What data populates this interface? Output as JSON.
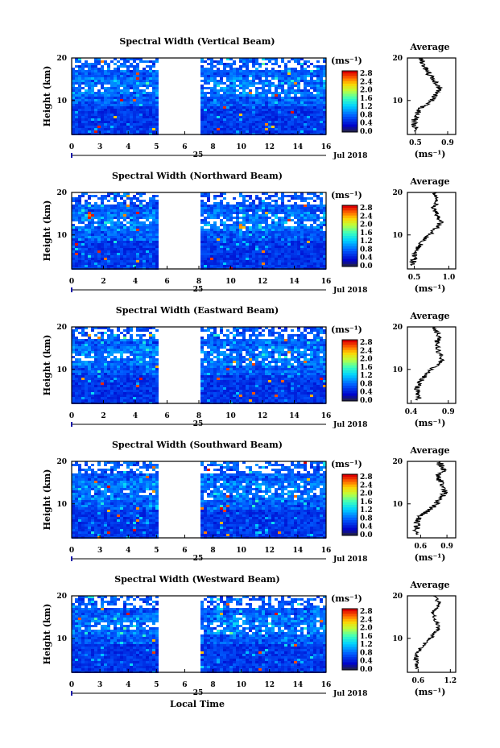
{
  "chart_data": [
    {
      "type": "heatmap",
      "title": "Spectral Width (Vertical Beam)",
      "ylabel": "Height (km)",
      "x_ticks": [
        "0",
        "3",
        "4",
        "5",
        "6",
        "8",
        "10",
        "12",
        "14",
        "16"
      ],
      "y_ticks": [
        "20",
        "10"
      ],
      "ylim": [
        2,
        20
      ],
      "xlim": [
        0,
        16
      ],
      "no_data_hours": [
        5.3,
        8.0
      ],
      "colorbar_unit": "(ms⁻¹)",
      "colorbar_ticks": [
        "2.8",
        "2.4",
        "2.0",
        "1.6",
        "1.2",
        "0.8",
        "0.4",
        "0.0"
      ],
      "date_marker": "25",
      "date_label": "Jul 2018",
      "avg_title": "Average",
      "avg_xlabel": "(ms⁻¹)",
      "avg_ticks": [
        "0.5",
        "0.9"
      ],
      "avg_xlim": [
        0.4,
        1.0
      ],
      "avg_y_ticks": [
        "20",
        "10"
      ],
      "seed": 11,
      "avg_profile": [
        {
          "h": 3,
          "v": 0.5
        },
        {
          "h": 5,
          "v": 0.48
        },
        {
          "h": 7,
          "v": 0.52
        },
        {
          "h": 8,
          "v": 0.55
        },
        {
          "h": 9,
          "v": 0.62
        },
        {
          "h": 10,
          "v": 0.7
        },
        {
          "h": 11,
          "v": 0.74
        },
        {
          "h": 12,
          "v": 0.78
        },
        {
          "h": 13,
          "v": 0.8
        },
        {
          "h": 14,
          "v": 0.76
        },
        {
          "h": 15,
          "v": 0.72
        },
        {
          "h": 16,
          "v": 0.68
        },
        {
          "h": 17,
          "v": 0.64
        },
        {
          "h": 18,
          "v": 0.6
        },
        {
          "h": 19,
          "v": 0.58
        },
        {
          "h": 20,
          "v": 0.56
        }
      ]
    },
    {
      "type": "heatmap",
      "title": "Spectral Width (Northward Beam)",
      "ylabel": "Height (km)",
      "x_ticks": [
        "0",
        "2",
        "4",
        "6",
        "8",
        "10",
        "12",
        "14",
        "16"
      ],
      "y_ticks": [
        "20",
        "10"
      ],
      "ylim": [
        2,
        20
      ],
      "xlim": [
        0,
        16
      ],
      "no_data_hours": [
        5.3,
        8.0
      ],
      "colorbar_unit": "(ms⁻¹)",
      "colorbar_ticks": [
        "2.8",
        "2.4",
        "2.0",
        "1.6",
        "1.2",
        "0.8",
        "0.4",
        "0.0"
      ],
      "date_marker": "25",
      "date_label": "Jul 2018",
      "avg_title": "Average",
      "avg_xlabel": "(ms⁻¹)",
      "avg_ticks": [
        "0.5",
        "1.0"
      ],
      "avg_xlim": [
        0.4,
        1.1
      ],
      "avg_y_ticks": [
        "20",
        "10"
      ],
      "seed": 23,
      "avg_profile": [
        {
          "h": 3,
          "v": 0.48
        },
        {
          "h": 5,
          "v": 0.5
        },
        {
          "h": 7,
          "v": 0.55
        },
        {
          "h": 8,
          "v": 0.6
        },
        {
          "h": 9,
          "v": 0.66
        },
        {
          "h": 10,
          "v": 0.72
        },
        {
          "h": 11,
          "v": 0.78
        },
        {
          "h": 12,
          "v": 0.84
        },
        {
          "h": 13,
          "v": 0.88
        },
        {
          "h": 14,
          "v": 0.86
        },
        {
          "h": 15,
          "v": 0.82
        },
        {
          "h": 16,
          "v": 0.78
        },
        {
          "h": 17,
          "v": 0.8
        },
        {
          "h": 18,
          "v": 0.84
        },
        {
          "h": 19,
          "v": 0.82
        },
        {
          "h": 20,
          "v": 0.78
        }
      ]
    },
    {
      "type": "heatmap",
      "title": "Spectral Width (Eastward Beam)",
      "ylabel": "Height (km)",
      "x_ticks": [
        "0",
        "2",
        "4",
        "6",
        "8",
        "10",
        "12",
        "14",
        "16"
      ],
      "y_ticks": [
        "20",
        "10"
      ],
      "ylim": [
        2,
        20
      ],
      "xlim": [
        0,
        16
      ],
      "no_data_hours": [
        5.3,
        8.0
      ],
      "colorbar_unit": "(ms⁻¹)",
      "colorbar_ticks": [
        "2.8",
        "2.4",
        "2.0",
        "1.6",
        "1.2",
        "0.8",
        "0.4",
        "0.0"
      ],
      "date_marker": "25",
      "date_label": "Jul 2018",
      "avg_title": "Average",
      "avg_xlabel": "(ms⁻¹)",
      "avg_ticks": [
        "0.4",
        "0.9"
      ],
      "avg_xlim": [
        0.35,
        1.0
      ],
      "avg_y_ticks": [
        "20",
        "10"
      ],
      "seed": 37,
      "avg_profile": [
        {
          "h": 3,
          "v": 0.5
        },
        {
          "h": 5,
          "v": 0.48
        },
        {
          "h": 7,
          "v": 0.52
        },
        {
          "h": 8,
          "v": 0.56
        },
        {
          "h": 9,
          "v": 0.62
        },
        {
          "h": 10,
          "v": 0.68
        },
        {
          "h": 11,
          "v": 0.74
        },
        {
          "h": 12,
          "v": 0.8
        },
        {
          "h": 13,
          "v": 0.82
        },
        {
          "h": 14,
          "v": 0.78
        },
        {
          "h": 15,
          "v": 0.76
        },
        {
          "h": 16,
          "v": 0.74
        },
        {
          "h": 17,
          "v": 0.76
        },
        {
          "h": 18,
          "v": 0.78
        },
        {
          "h": 19,
          "v": 0.74
        },
        {
          "h": 20,
          "v": 0.7
        }
      ]
    },
    {
      "type": "heatmap",
      "title": "Spectral Width (Southward Beam)",
      "ylabel": "Height (km)",
      "x_ticks": [
        "0",
        "3",
        "4",
        "5",
        "6",
        "8",
        "10",
        "12",
        "14",
        "16"
      ],
      "y_ticks": [
        "20",
        "10"
      ],
      "ylim": [
        2,
        20
      ],
      "xlim": [
        0,
        16
      ],
      "no_data_hours": [
        5.3,
        8.0
      ],
      "colorbar_unit": "(ms⁻¹)",
      "colorbar_ticks": [
        "2.8",
        "2.4",
        "2.0",
        "1.6",
        "1.2",
        "0.8",
        "0.4",
        "0.0"
      ],
      "date_marker": "25",
      "date_label": "Jul 2018",
      "avg_title": "Average",
      "avg_xlabel": "(ms⁻¹)",
      "avg_ticks": [
        "0.6",
        "0.9"
      ],
      "avg_xlim": [
        0.45,
        1.0
      ],
      "avg_y_ticks": [
        "20",
        "10"
      ],
      "seed": 41,
      "avg_profile": [
        {
          "h": 3,
          "v": 0.56
        },
        {
          "h": 5,
          "v": 0.55
        },
        {
          "h": 7,
          "v": 0.6
        },
        {
          "h": 8,
          "v": 0.66
        },
        {
          "h": 9,
          "v": 0.72
        },
        {
          "h": 10,
          "v": 0.78
        },
        {
          "h": 11,
          "v": 0.82
        },
        {
          "h": 12,
          "v": 0.86
        },
        {
          "h": 13,
          "v": 0.88
        },
        {
          "h": 14,
          "v": 0.86
        },
        {
          "h": 15,
          "v": 0.84
        },
        {
          "h": 16,
          "v": 0.8
        },
        {
          "h": 17,
          "v": 0.82
        },
        {
          "h": 18,
          "v": 0.86
        },
        {
          "h": 19,
          "v": 0.84
        },
        {
          "h": 20,
          "v": 0.8
        }
      ]
    },
    {
      "type": "heatmap",
      "title": "Spectral Width (Westward Beam)",
      "ylabel": "Height (km)",
      "x_ticks": [
        "0",
        "3",
        "4",
        "5",
        "6",
        "8",
        "10",
        "12",
        "14",
        "16"
      ],
      "y_ticks": [
        "20",
        "10"
      ],
      "ylim": [
        2,
        20
      ],
      "xlim": [
        0,
        16
      ],
      "no_data_hours": [
        5.3,
        8.0
      ],
      "colorbar_unit": "(ms⁻¹)",
      "colorbar_ticks": [
        "2.8",
        "2.4",
        "2.0",
        "1.6",
        "1.2",
        "0.8",
        "0.4",
        "0.0"
      ],
      "date_marker": "25",
      "date_label": "Jul 2018",
      "xlabel": "Local Time",
      "avg_title": "Average",
      "avg_xlabel": "(ms⁻¹)",
      "avg_ticks": [
        "0.6",
        "1.2"
      ],
      "avg_xlim": [
        0.4,
        1.3
      ],
      "avg_y_ticks": [
        "20",
        "10"
      ],
      "seed": 53,
      "avg_profile": [
        {
          "h": 3,
          "v": 0.58
        },
        {
          "h": 5,
          "v": 0.56
        },
        {
          "h": 7,
          "v": 0.6
        },
        {
          "h": 8,
          "v": 0.66
        },
        {
          "h": 9,
          "v": 0.74
        },
        {
          "h": 10,
          "v": 0.82
        },
        {
          "h": 11,
          "v": 0.9
        },
        {
          "h": 12,
          "v": 0.96
        },
        {
          "h": 13,
          "v": 0.98
        },
        {
          "h": 14,
          "v": 0.94
        },
        {
          "h": 15,
          "v": 0.9
        },
        {
          "h": 16,
          "v": 0.86
        },
        {
          "h": 17,
          "v": 0.92
        },
        {
          "h": 18,
          "v": 1.0
        },
        {
          "h": 19,
          "v": 0.96
        },
        {
          "h": 20,
          "v": 0.9
        }
      ]
    }
  ]
}
